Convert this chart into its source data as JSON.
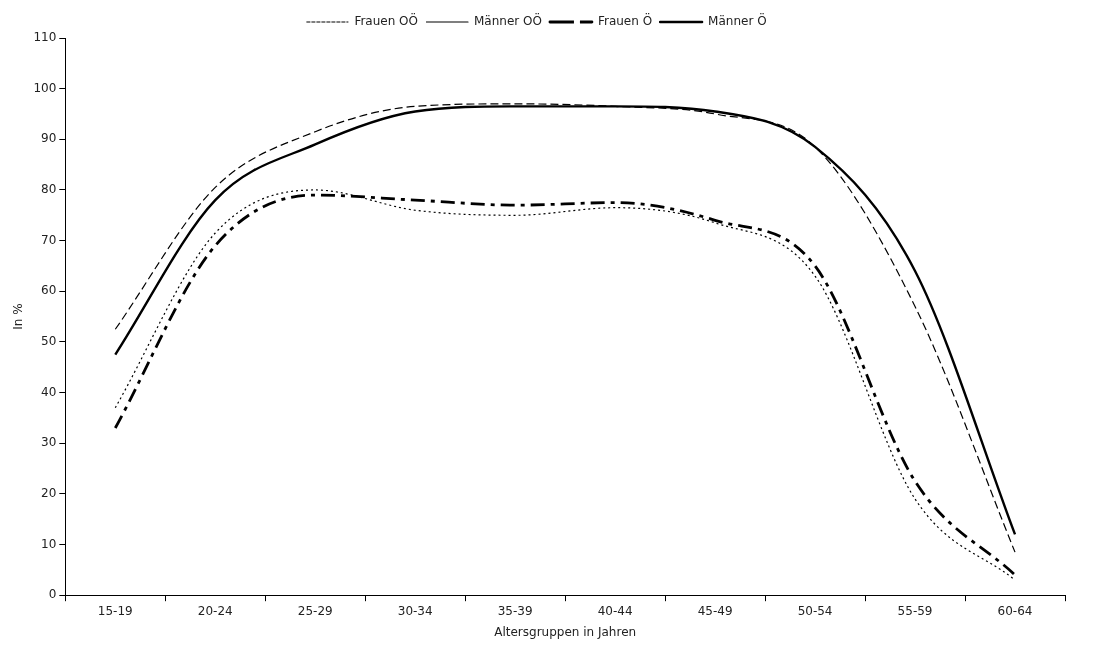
{
  "chart_data": {
    "type": "line",
    "xlabel": "Altersgruppen in Jahren",
    "ylabel": "In %",
    "categories": [
      "15-19",
      "20-24",
      "25-29",
      "30-34",
      "35-39",
      "40-44",
      "45-49",
      "50-54",
      "55-59",
      "60-64"
    ],
    "series": [
      {
        "name": "Frauen OÖ",
        "color": "#000000",
        "line_style": "dotted",
        "values": [
          37,
          71.5,
          80,
          76,
          75,
          76.5,
          73.5,
          63,
          19,
          3
        ]
      },
      {
        "name": "Männer OÖ",
        "color": "#000000",
        "line_style": "dashed",
        "values": [
          52.5,
          80.5,
          91.5,
          96.5,
          97,
          96.5,
          95,
          88.5,
          57,
          8.5
        ]
      },
      {
        "name": "Frauen Ö",
        "color": "#000000",
        "line_style": "dashed",
        "values": [
          33,
          69,
          79,
          78,
          77,
          77.5,
          74,
          65,
          22.5,
          4
        ]
      },
      {
        "name": "Männer Ö",
        "color": "#000000",
        "line_style": "solid",
        "values": [
          47.5,
          78,
          89,
          95.5,
          96.5,
          96.5,
          95.5,
          88.5,
          64,
          12
        ]
      }
    ],
    "ylim": [
      0,
      110
    ],
    "yticks": [
      0,
      10,
      20,
      30,
      40,
      50,
      60,
      70,
      80,
      90,
      100,
      110
    ],
    "grid": false,
    "legend": "top",
    "marker": "none"
  }
}
